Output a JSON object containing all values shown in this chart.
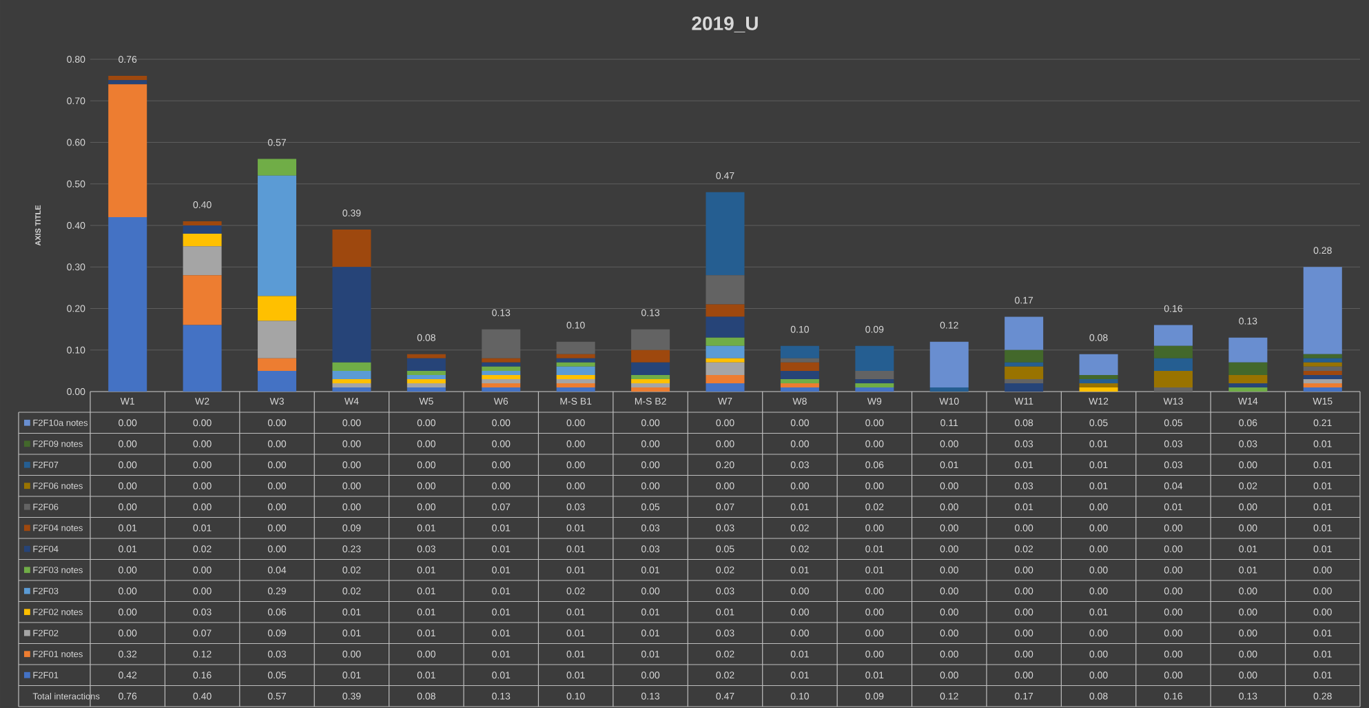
{
  "chart_data": {
    "type": "bar",
    "stacked": true,
    "title": "2019_U",
    "ylabel": "AXIS TITLE",
    "categories": [
      "W1",
      "W2",
      "W3",
      "W4",
      "W5",
      "W6",
      "M-S B1",
      "M-S B2",
      "W7",
      "W8",
      "W9",
      "W10",
      "W11",
      "W12",
      "W13",
      "W14",
      "W15"
    ],
    "series": [
      {
        "name": "F2F01",
        "color": "#4472c4",
        "values": [
          0.42,
          0.16,
          0.05,
          0.01,
          0.01,
          0.01,
          0.01,
          0.0,
          0.02,
          0.01,
          0.01,
          0.0,
          0.0,
          0.0,
          0.0,
          0.0,
          0.01
        ],
        "value_labels": [
          "0.42",
          "0.16",
          "0.05",
          "0.01",
          "0.01",
          "0.01",
          "0.01",
          "0.00",
          "0.02",
          "0.01",
          "0.01",
          "0.00",
          "0.00",
          "0.00",
          "0.00",
          "0.00",
          "0.01"
        ]
      },
      {
        "name": "F2F01 notes",
        "color": "#ed7d31",
        "values": [
          0.32,
          0.12,
          0.03,
          0.0,
          0.0,
          0.01,
          0.01,
          0.01,
          0.02,
          0.01,
          0.0,
          0.0,
          0.0,
          0.0,
          0.0,
          0.0,
          0.01
        ],
        "value_labels": [
          "0.32",
          "0.12",
          "0.03",
          "0.00",
          "0.00",
          "0.01",
          "0.01",
          "0.01",
          "0.02",
          "0.01",
          "0.00",
          "0.00",
          "0.00",
          "0.00",
          "0.00",
          "0.00",
          "0.01"
        ]
      },
      {
        "name": "F2F02",
        "color": "#a5a5a5",
        "values": [
          0.0,
          0.07,
          0.09,
          0.01,
          0.01,
          0.01,
          0.01,
          0.01,
          0.03,
          0.0,
          0.0,
          0.0,
          0.0,
          0.0,
          0.0,
          0.0,
          0.01
        ],
        "value_labels": [
          "0.00",
          "0.07",
          "0.09",
          "0.01",
          "0.01",
          "0.01",
          "0.01",
          "0.01",
          "0.03",
          "0.00",
          "0.00",
          "0.00",
          "0.00",
          "0.00",
          "0.00",
          "0.00",
          "0.01"
        ]
      },
      {
        "name": "F2F02 notes",
        "color": "#ffc000",
        "values": [
          0.0,
          0.03,
          0.06,
          0.01,
          0.01,
          0.01,
          0.01,
          0.01,
          0.01,
          0.0,
          0.0,
          0.0,
          0.0,
          0.01,
          0.0,
          0.0,
          0.0
        ],
        "value_labels": [
          "0.00",
          "0.03",
          "0.06",
          "0.01",
          "0.01",
          "0.01",
          "0.01",
          "0.01",
          "0.01",
          "0.00",
          "0.00",
          "0.00",
          "0.00",
          "0.01",
          "0.00",
          "0.00",
          "0.00"
        ]
      },
      {
        "name": "F2F03",
        "color": "#5b9bd5",
        "values": [
          0.0,
          0.0,
          0.29,
          0.02,
          0.01,
          0.01,
          0.02,
          0.0,
          0.03,
          0.0,
          0.0,
          0.0,
          0.0,
          0.0,
          0.0,
          0.0,
          0.0
        ],
        "value_labels": [
          "0.00",
          "0.00",
          "0.29",
          "0.02",
          "0.01",
          "0.01",
          "0.02",
          "0.00",
          "0.03",
          "0.00",
          "0.00",
          "0.00",
          "0.00",
          "0.00",
          "0.00",
          "0.00",
          "0.00"
        ]
      },
      {
        "name": "F2F03 notes",
        "color": "#70ad47",
        "values": [
          0.0,
          0.0,
          0.04,
          0.02,
          0.01,
          0.01,
          0.01,
          0.01,
          0.02,
          0.01,
          0.01,
          0.0,
          0.0,
          0.0,
          0.0,
          0.01,
          0.0
        ],
        "value_labels": [
          "0.00",
          "0.00",
          "0.04",
          "0.02",
          "0.01",
          "0.01",
          "0.01",
          "0.01",
          "0.02",
          "0.01",
          "0.01",
          "0.00",
          "0.00",
          "0.00",
          "0.00",
          "0.01",
          "0.00"
        ]
      },
      {
        "name": "F2F04",
        "color": "#264478",
        "values": [
          0.01,
          0.02,
          0.0,
          0.23,
          0.03,
          0.01,
          0.01,
          0.03,
          0.05,
          0.02,
          0.01,
          0.0,
          0.02,
          0.0,
          0.0,
          0.01,
          0.01
        ],
        "value_labels": [
          "0.01",
          "0.02",
          "0.00",
          "0.23",
          "0.03",
          "0.01",
          "0.01",
          "0.03",
          "0.05",
          "0.02",
          "0.01",
          "0.00",
          "0.02",
          "0.00",
          "0.00",
          "0.01",
          "0.01"
        ]
      },
      {
        "name": "F2F04 notes",
        "color": "#9e480e",
        "values": [
          0.01,
          0.01,
          0.0,
          0.09,
          0.01,
          0.01,
          0.01,
          0.03,
          0.03,
          0.02,
          0.0,
          0.0,
          0.0,
          0.0,
          0.0,
          0.0,
          0.01
        ],
        "value_labels": [
          "0.01",
          "0.01",
          "0.00",
          "0.09",
          "0.01",
          "0.01",
          "0.01",
          "0.03",
          "0.03",
          "0.02",
          "0.00",
          "0.00",
          "0.00",
          "0.00",
          "0.00",
          "0.00",
          "0.01"
        ]
      },
      {
        "name": "F2F06",
        "color": "#636363",
        "values": [
          0.0,
          0.0,
          0.0,
          0.0,
          0.0,
          0.07,
          0.03,
          0.05,
          0.07,
          0.01,
          0.02,
          0.0,
          0.01,
          0.0,
          0.01,
          0.0,
          0.01
        ],
        "value_labels": [
          "0.00",
          "0.00",
          "0.00",
          "0.00",
          "0.00",
          "0.07",
          "0.03",
          "0.05",
          "0.07",
          "0.01",
          "0.02",
          "0.00",
          "0.01",
          "0.00",
          "0.01",
          "0.00",
          "0.01"
        ]
      },
      {
        "name": "F2F06 notes",
        "color": "#997300",
        "values": [
          0.0,
          0.0,
          0.0,
          0.0,
          0.0,
          0.0,
          0.0,
          0.0,
          0.0,
          0.0,
          0.0,
          0.0,
          0.03,
          0.01,
          0.04,
          0.02,
          0.01
        ],
        "value_labels": [
          "0.00",
          "0.00",
          "0.00",
          "0.00",
          "0.00",
          "0.00",
          "0.00",
          "0.00",
          "0.00",
          "0.00",
          "0.00",
          "0.00",
          "0.03",
          "0.01",
          "0.04",
          "0.02",
          "0.01"
        ]
      },
      {
        "name": "F2F07",
        "color": "#255e91",
        "values": [
          0.0,
          0.0,
          0.0,
          0.0,
          0.0,
          0.0,
          0.0,
          0.0,
          0.2,
          0.03,
          0.06,
          0.01,
          0.01,
          0.01,
          0.03,
          0.0,
          0.01
        ],
        "value_labels": [
          "0.00",
          "0.00",
          "0.00",
          "0.00",
          "0.00",
          "0.00",
          "0.00",
          "0.00",
          "0.20",
          "0.03",
          "0.06",
          "0.01",
          "0.01",
          "0.01",
          "0.03",
          "0.00",
          "0.01"
        ]
      },
      {
        "name": "F2F09 notes",
        "color": "#43682b",
        "values": [
          0.0,
          0.0,
          0.0,
          0.0,
          0.0,
          0.0,
          0.0,
          0.0,
          0.0,
          0.0,
          0.0,
          0.0,
          0.03,
          0.01,
          0.03,
          0.03,
          0.01
        ],
        "value_labels": [
          "0.00",
          "0.00",
          "0.00",
          "0.00",
          "0.00",
          "0.00",
          "0.00",
          "0.00",
          "0.00",
          "0.00",
          "0.00",
          "0.00",
          "0.03",
          "0.01",
          "0.03",
          "0.03",
          "0.01"
        ]
      },
      {
        "name": "F2F10a notes",
        "color": "#698ed0",
        "values": [
          0.0,
          0.0,
          0.0,
          0.0,
          0.0,
          0.0,
          0.0,
          0.0,
          0.0,
          0.0,
          0.0,
          0.11,
          0.08,
          0.05,
          0.05,
          0.06,
          0.21
        ],
        "value_labels": [
          "0.00",
          "0.00",
          "0.00",
          "0.00",
          "0.00",
          "0.00",
          "0.00",
          "0.00",
          "0.00",
          "0.00",
          "0.00",
          "0.11",
          "0.08",
          "0.05",
          "0.05",
          "0.06",
          "0.21"
        ]
      }
    ],
    "totals": [
      "0.76",
      "0.40",
      "0.57",
      "0.39",
      "0.08",
      "0.13",
      "0.10",
      "0.13",
      "0.47",
      "0.10",
      "0.09",
      "0.12",
      "0.17",
      "0.08",
      "0.16",
      "0.13",
      "0.28"
    ],
    "annotations": [
      "Total interactions"
    ],
    "legend": "bottom",
    "grid": "y",
    "ylim": [
      0,
      0.8
    ],
    "yticks": [
      {
        "value": 0,
        "label": "0.00"
      },
      {
        "value": 0.1,
        "label": "0.10"
      },
      {
        "value": 0.2,
        "label": "0.20"
      },
      {
        "value": 0.3,
        "label": "0.30"
      },
      {
        "value": 0.4,
        "label": "0.40"
      },
      {
        "value": 0.5,
        "label": "0.50"
      },
      {
        "value": 0.6,
        "label": "0.60"
      },
      {
        "value": 0.7,
        "label": "0.70"
      },
      {
        "value": 0.8,
        "label": "0.80"
      }
    ]
  }
}
